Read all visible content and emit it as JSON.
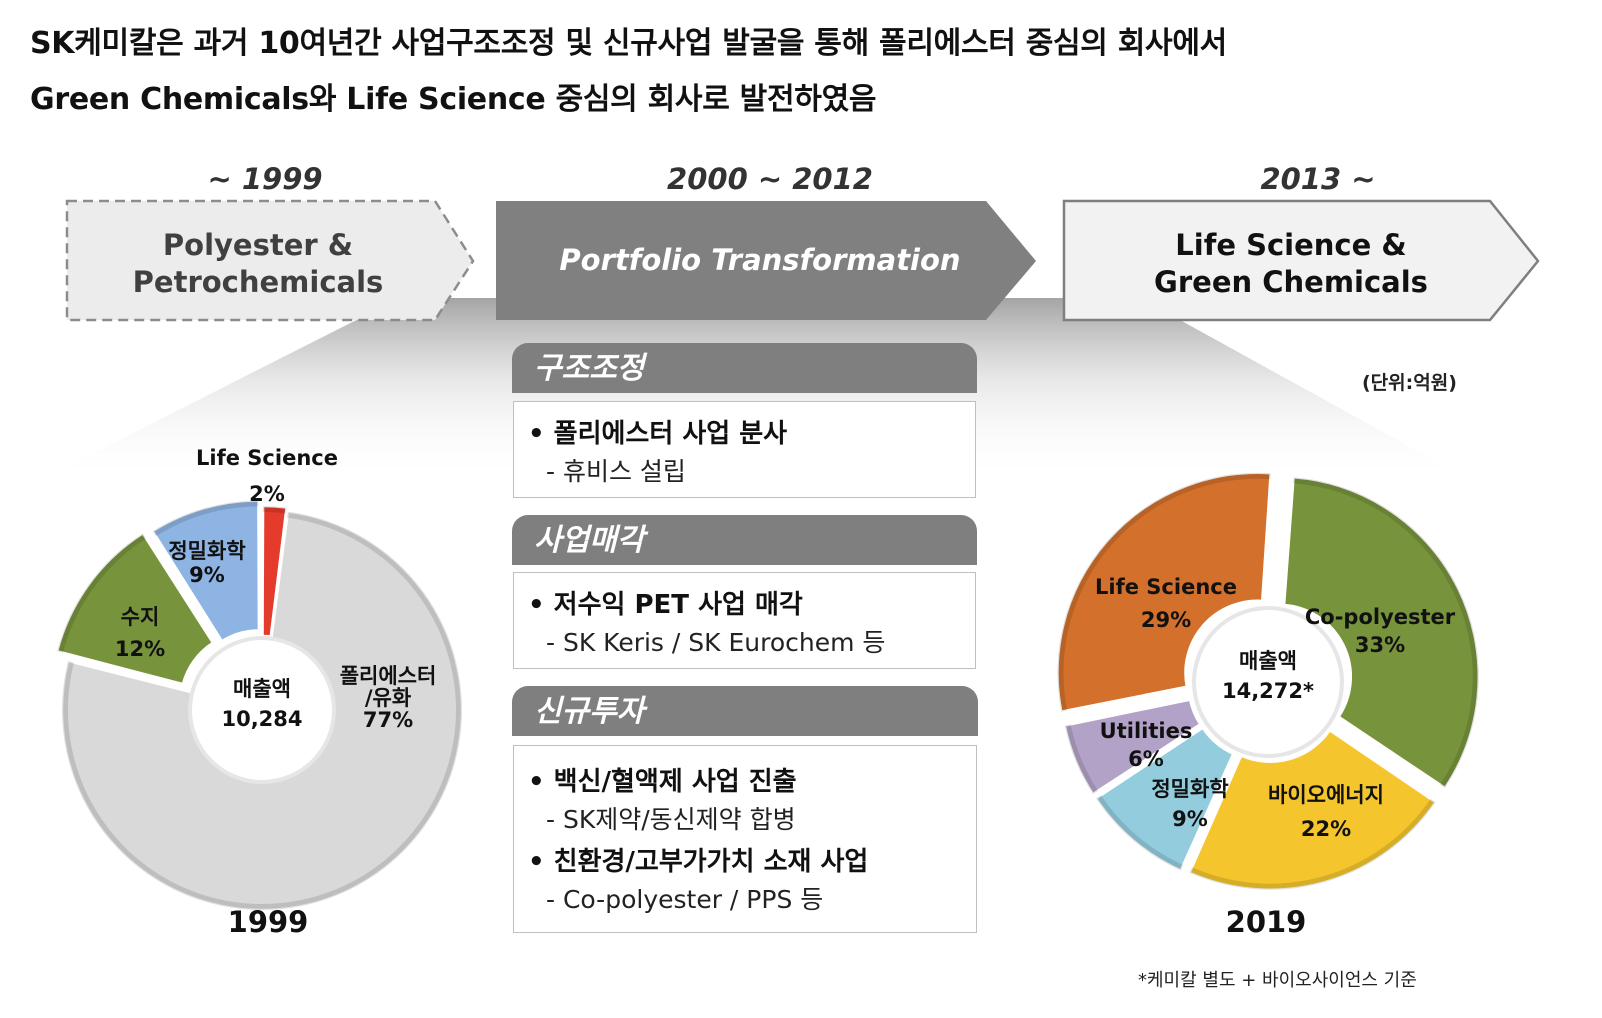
{
  "headline": {
    "line1": "SK케미칼은 과거 10여년간 사업구조조정 및 신규사업 발굴을 통해 폴리에스터 중심의 회사에서",
    "line2": "Green Chemicals와 Life Science 중심의 회사로 발전하였음"
  },
  "timeline": {
    "eras": [
      "~ 1999",
      "2000 ~ 2012",
      "2013 ~"
    ],
    "arrow1": [
      "Polyester &",
      "Petrochemicals"
    ],
    "arrow2": "Portfolio Transformation",
    "arrow3": [
      "Life Science &",
      "Green Chemicals"
    ]
  },
  "sections": [
    {
      "title": "구조조정",
      "items": [
        {
          "bullet": "• 폴리에스터 사업 분사",
          "sub": "- 휴비스 설립"
        }
      ]
    },
    {
      "title": "사업매각",
      "items": [
        {
          "bullet": "• 저수익 PET 사업 매각",
          "sub": "- SK Keris / SK Eurochem 등"
        }
      ]
    },
    {
      "title": "신규투자",
      "items": [
        {
          "bullet": "• 백신/혈액제 사업 진출",
          "sub": "- SK제약/동신제약 합병"
        },
        {
          "bullet": "• 친환경/고부가가치 소재 사업",
          "sub": "- Co-polyester / PPS 등"
        }
      ]
    }
  ],
  "unit": "(단위:억원)",
  "footnote": "*케미칼 별도 + 바이오사이언스 기준",
  "colors": {
    "polyester_gray": "#d9d9d9",
    "resin_green": "#77933c",
    "finechem_blue": "#8eb4e3",
    "lifescience_red": "#e53b2c",
    "lifescience_orange": "#d2702c",
    "copolyester_green": "#77933c",
    "bioenergy_yellow": "#f4c52c",
    "finechem_lightblue": "#93cddd",
    "utilities_purple": "#b3a2c7"
  },
  "chart_data": [
    {
      "type": "pie",
      "variant": "donut",
      "title": "1999",
      "center_label": [
        "매출액",
        "10,284"
      ],
      "slices": [
        {
          "name": "Life Science",
          "value": 2,
          "label": "2%",
          "color": "#e53b2c"
        },
        {
          "name": "폴리에스터/유화",
          "value": 77,
          "label": "77%",
          "color": "#d9d9d9"
        },
        {
          "name": "수지",
          "value": 12,
          "label": "12%",
          "color": "#77933c"
        },
        {
          "name": "정밀화학",
          "value": 9,
          "label": "9%",
          "color": "#8eb4e3"
        }
      ]
    },
    {
      "type": "pie",
      "variant": "donut",
      "title": "2019",
      "center_label": [
        "매출액",
        "14,272*"
      ],
      "slices": [
        {
          "name": "Co-polyester",
          "value": 33,
          "label": "33%",
          "color": "#77933c"
        },
        {
          "name": "바이오에너지",
          "value": 22,
          "label": "22%",
          "color": "#f4c52c"
        },
        {
          "name": "정밀화학",
          "value": 9,
          "label": "9%",
          "color": "#93cddd"
        },
        {
          "name": "Utilities",
          "value": 6,
          "label": "6%",
          "color": "#b3a2c7"
        },
        {
          "name": "Life Science",
          "value": 29,
          "label": "29%",
          "color": "#d2702c"
        }
      ]
    }
  ]
}
